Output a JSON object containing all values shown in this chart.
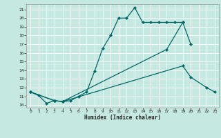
{
  "title": "",
  "xlabel": "Humidex (Indice chaleur)",
  "bg_color": "#c5e8e0",
  "grid_color": "#ffffff",
  "line_color": "#006868",
  "xlim": [
    -0.5,
    23.5
  ],
  "ylim": [
    9.7,
    21.6
  ],
  "xticks": [
    0,
    1,
    2,
    3,
    4,
    5,
    6,
    7,
    8,
    9,
    10,
    11,
    12,
    13,
    14,
    15,
    16,
    17,
    18,
    19,
    20,
    21,
    22,
    23
  ],
  "yticks": [
    10,
    11,
    12,
    13,
    14,
    15,
    16,
    17,
    18,
    19,
    20,
    21
  ],
  "curve1_x": [
    0,
    1,
    2,
    3,
    4,
    5,
    6,
    7,
    8,
    9,
    10,
    11,
    12,
    13,
    14,
    15,
    16,
    17,
    18,
    19,
    20
  ],
  "curve1_y": [
    11.5,
    11.1,
    10.2,
    10.5,
    10.4,
    10.5,
    11.0,
    11.5,
    13.9,
    16.5,
    18.0,
    20.0,
    20.0,
    21.2,
    19.5,
    19.5,
    19.5,
    19.5,
    19.5,
    19.5,
    17.0
  ],
  "curve2_x": [
    0,
    3,
    4,
    17,
    19
  ],
  "curve2_y": [
    11.5,
    10.5,
    10.4,
    16.4,
    19.5
  ],
  "curve3_x": [
    0,
    3,
    4,
    19,
    20,
    22,
    23
  ],
  "curve3_y": [
    11.5,
    10.5,
    10.4,
    14.5,
    13.2,
    12.0,
    11.5
  ]
}
